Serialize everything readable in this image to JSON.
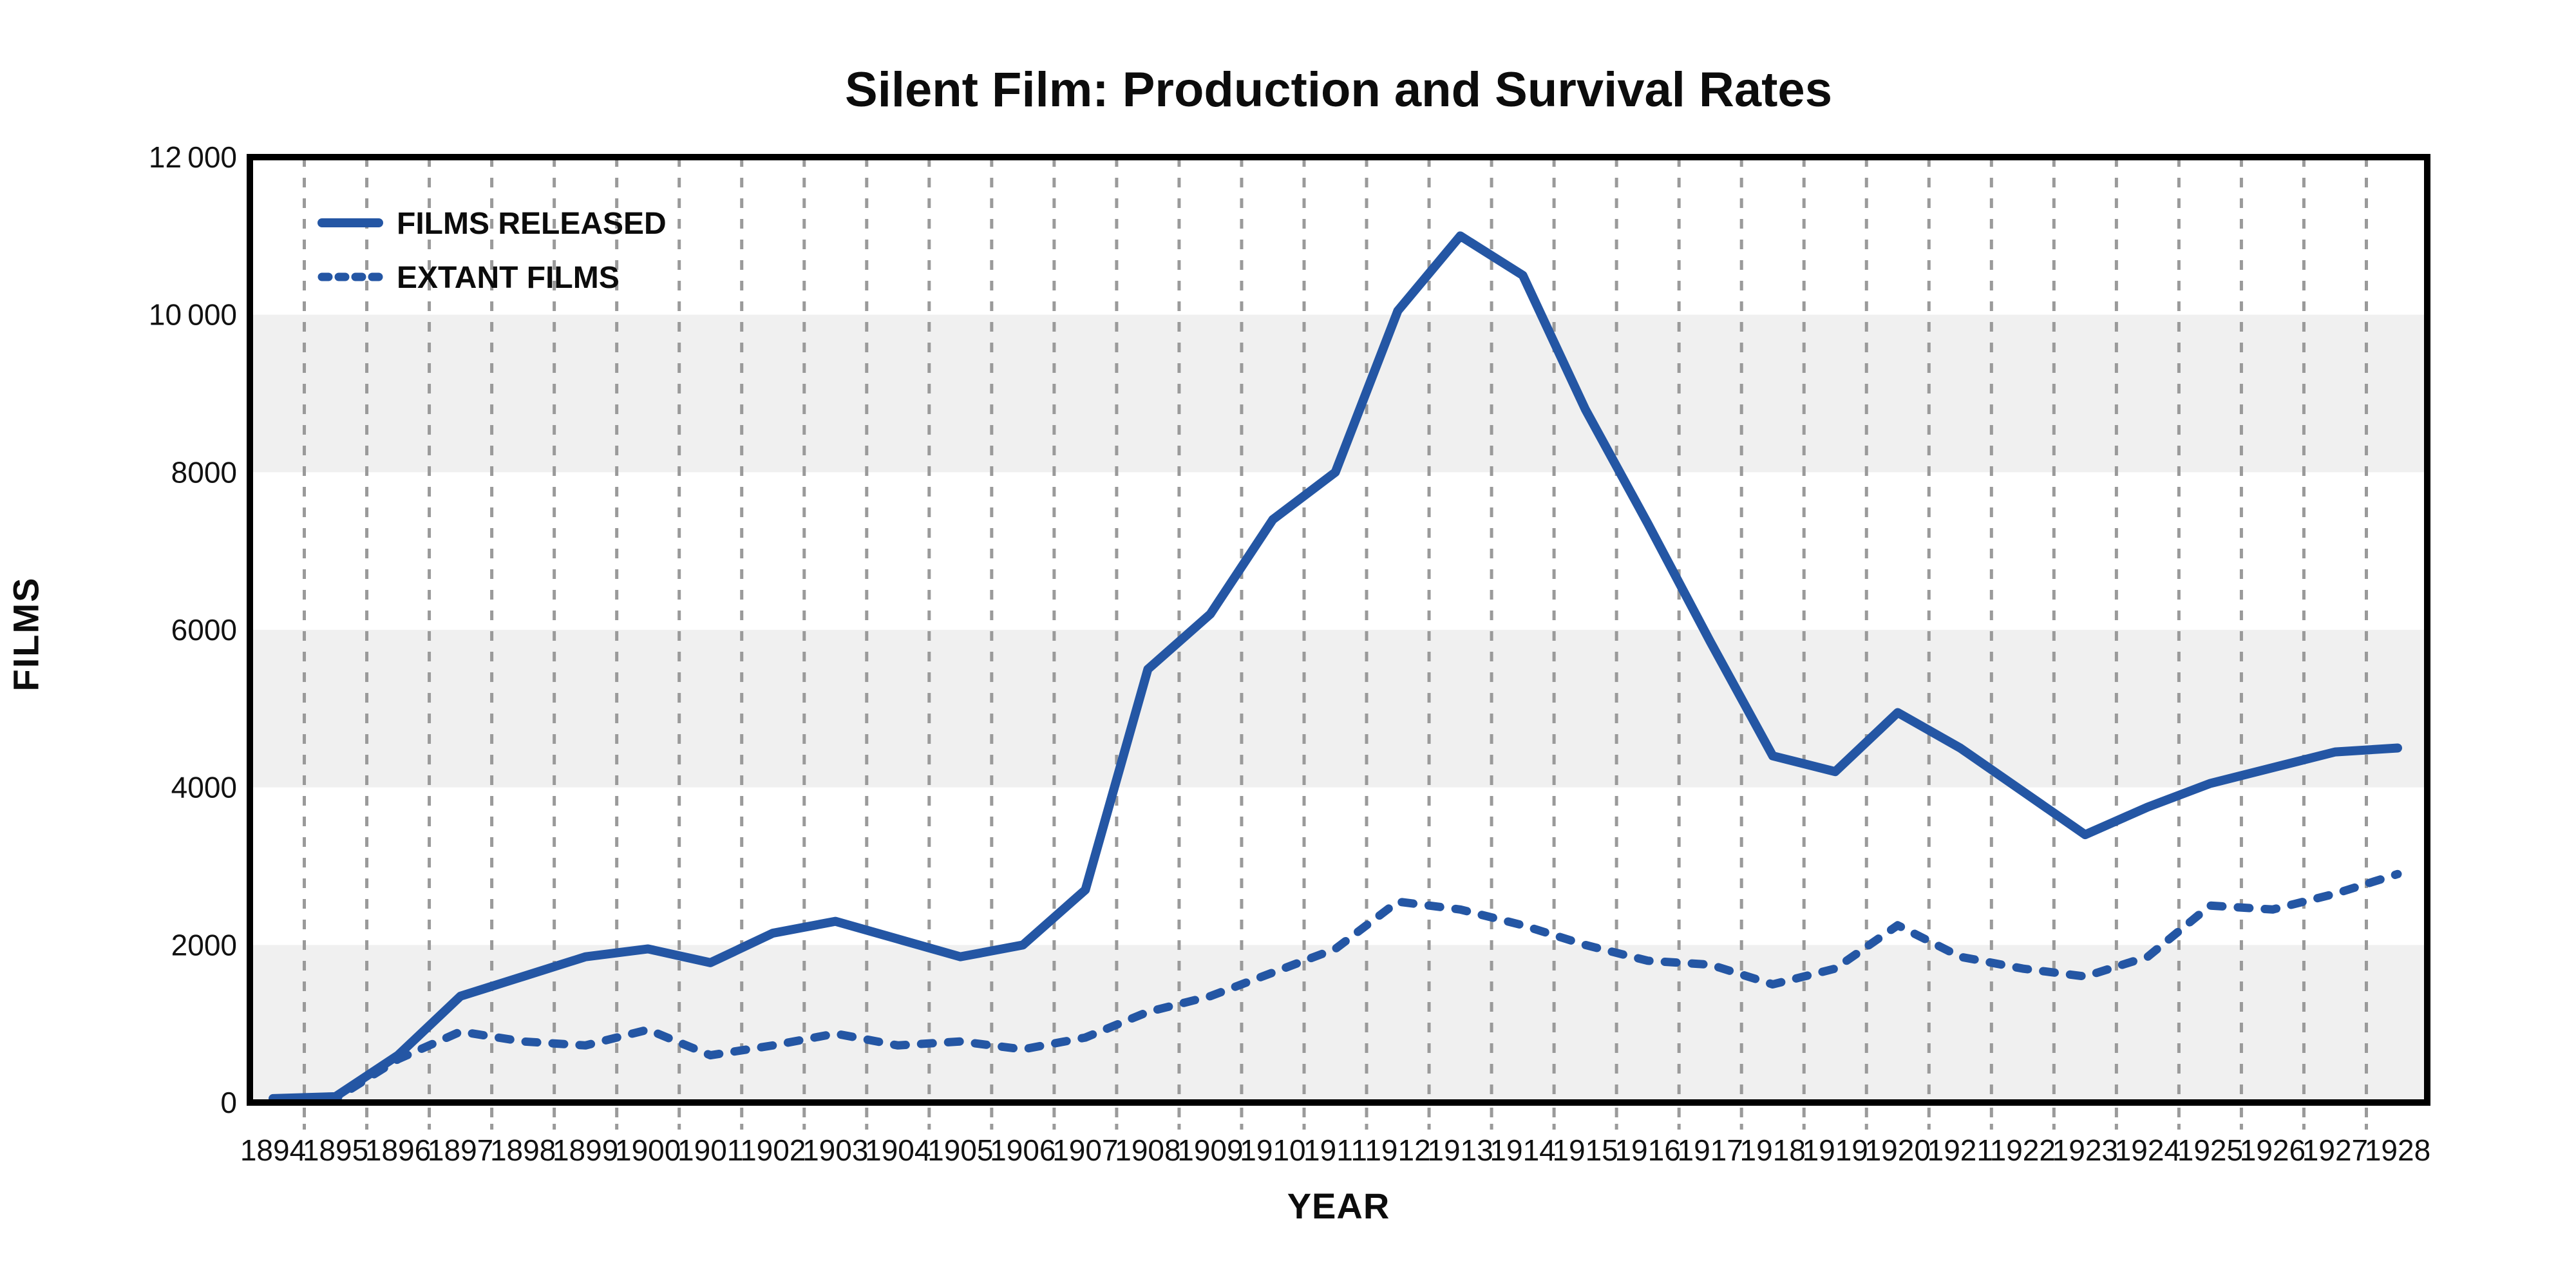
{
  "chart_data": {
    "type": "line",
    "title": "Silent Film: Production and Survival Rates",
    "xlabel": "YEAR",
    "ylabel": "FILMS",
    "x": [
      1894,
      1895,
      1896,
      1897,
      1898,
      1899,
      1900,
      1901,
      1902,
      1903,
      1904,
      1905,
      1906,
      1907,
      1908,
      1909,
      1910,
      1911,
      1912,
      1913,
      1914,
      1915,
      1916,
      1917,
      1918,
      1919,
      1920,
      1921,
      1922,
      1923,
      1924,
      1925,
      1926,
      1927,
      1928
    ],
    "series": [
      {
        "name": "FILMS RELEASED",
        "style": "solid",
        "values": [
          50,
          75,
          600,
          1350,
          1600,
          1850,
          1950,
          1775,
          2150,
          2300,
          2075,
          1850,
          2000,
          2700,
          5500,
          6200,
          7400,
          8000,
          10050,
          11000,
          10500,
          8800,
          7350,
          5850,
          4400,
          4200,
          4950,
          4500,
          3950,
          3400,
          3750,
          4050,
          4250,
          4450,
          4500
        ]
      },
      {
        "name": "EXTANT FILMS",
        "style": "dashed",
        "values": [
          25,
          50,
          550,
          900,
          775,
          725,
          925,
          600,
          725,
          875,
          725,
          775,
          675,
          825,
          1150,
          1350,
          1650,
          1950,
          2550,
          2450,
          2250,
          2000,
          1800,
          1750,
          1500,
          1700,
          2250,
          1850,
          1700,
          1600,
          1850,
          2500,
          2450,
          2650,
          2900
        ]
      }
    ],
    "ylim": [
      0,
      12000
    ],
    "ytick_values": [
      0,
      2000,
      4000,
      6000,
      8000,
      10000,
      12000
    ],
    "ytick_labels": [
      "0",
      "2000",
      "4000",
      "6000",
      "8000",
      "10 000",
      "12 000"
    ],
    "bands": [
      [
        0,
        2000
      ],
      [
        4000,
        6000
      ],
      [
        8000,
        10000
      ]
    ],
    "legend_position": "top-left",
    "colors": {
      "line_blue": "#2456A4",
      "band_gray": "#F0F0F0",
      "grid_gray": "#9A9A9A",
      "axis_black": "#000000",
      "text_dark": "#111111"
    },
    "grid": "vertical dashed gridlines at half-year positions, ticks below axis"
  }
}
